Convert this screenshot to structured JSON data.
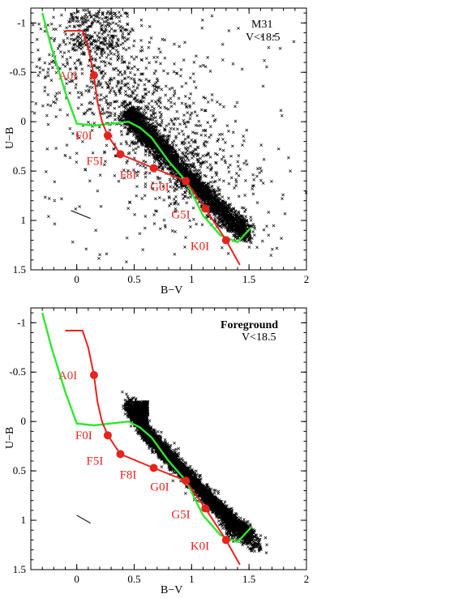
{
  "colors": {
    "red": "#e8231c",
    "green": "#2ee82e",
    "black": "#000000"
  },
  "chart_data": [
    {
      "type": "scatter",
      "title": "M31",
      "subtitle": "V<18.5",
      "title_bold": false,
      "xlabel": "B−V",
      "ylabel": "U−B",
      "xlim": [
        -0.4,
        2.0
      ],
      "ylim": [
        1.5,
        -1.15
      ],
      "y_inverted": true,
      "xticks": [
        0,
        0.5,
        1,
        1.5,
        2
      ],
      "xtick_labels": [
        "0",
        "0.5",
        "1",
        "1.5",
        "2"
      ],
      "yticks": [
        -1,
        -0.5,
        0,
        0.5,
        1,
        1.5
      ],
      "ytick_labels": [
        "-1",
        "-0.5",
        "0",
        "0.5",
        "1",
        "1.5"
      ],
      "scatter_description": "dense sequence of black crosses from (0.45, -0.05) to (1.5, 1.2) plus diffuse field crosses",
      "reddening_vector": [
        [
          -0.05,
          0.9
        ],
        [
          0.12,
          0.98
        ]
      ],
      "supergiant_sequence": {
        "x": [
          -0.1,
          0.05,
          0.1,
          0.15,
          0.18,
          0.22,
          0.27,
          0.38,
          0.67,
          0.95,
          1.12,
          1.3,
          1.42
        ],
        "y": [
          -0.92,
          -0.92,
          -0.75,
          -0.47,
          -0.2,
          0.0,
          0.14,
          0.33,
          0.47,
          0.6,
          0.88,
          1.2,
          1.45
        ]
      },
      "supergiant_points": [
        {
          "label": "A0I",
          "x": 0.15,
          "y": -0.47
        },
        {
          "label": "F0I",
          "x": 0.27,
          "y": 0.14
        },
        {
          "label": "F5I",
          "x": 0.38,
          "y": 0.33
        },
        {
          "label": "F8I",
          "x": 0.67,
          "y": 0.47
        },
        {
          "label": "G0I",
          "x": 0.95,
          "y": 0.6
        },
        {
          "label": "G5I",
          "x": 1.12,
          "y": 0.88
        },
        {
          "label": "K0I",
          "x": 1.3,
          "y": 1.2
        }
      ],
      "dwarf_sequence": {
        "x": [
          -0.3,
          -0.22,
          -0.1,
          0.0,
          0.15,
          0.3,
          0.45,
          0.55,
          0.65,
          0.8,
          0.95,
          1.1,
          1.25,
          1.4,
          1.52
        ],
        "y": [
          -1.1,
          -0.75,
          -0.3,
          0.02,
          0.04,
          0.02,
          0.0,
          0.06,
          0.16,
          0.4,
          0.6,
          0.95,
          1.15,
          1.22,
          1.07
        ]
      }
    },
    {
      "type": "scatter",
      "title": "Foreground",
      "subtitle": "V<18.5",
      "title_bold": true,
      "xlabel": "B−V",
      "ylabel": "U−B",
      "xlim": [
        -0.4,
        2.0
      ],
      "ylim": [
        1.5,
        -1.15
      ],
      "y_inverted": true,
      "xticks": [
        0,
        0.5,
        1,
        1.5,
        2
      ],
      "xtick_labels": [
        "0",
        "0.5",
        "1",
        "1.5",
        "2"
      ],
      "yticks": [
        -1,
        -0.5,
        0,
        0.5,
        1,
        1.5
      ],
      "ytick_labels": [
        "-1",
        "-0.5",
        "0",
        "0.5",
        "1",
        "1.5"
      ],
      "scatter_description": "dense narrow band of black crosses from (0.45, -0.2) to (1.55, 1.3)",
      "reddening_vector": [
        [
          0.0,
          0.95
        ],
        [
          0.12,
          1.03
        ]
      ],
      "supergiant_sequence": {
        "x": [
          -0.1,
          0.05,
          0.1,
          0.15,
          0.18,
          0.22,
          0.27,
          0.38,
          0.67,
          0.95,
          1.12,
          1.3,
          1.42
        ],
        "y": [
          -0.92,
          -0.92,
          -0.75,
          -0.47,
          -0.2,
          0.0,
          0.14,
          0.33,
          0.47,
          0.6,
          0.88,
          1.2,
          1.45
        ]
      },
      "supergiant_points": [
        {
          "label": "A0I",
          "x": 0.15,
          "y": -0.47
        },
        {
          "label": "F0I",
          "x": 0.27,
          "y": 0.14
        },
        {
          "label": "F5I",
          "x": 0.38,
          "y": 0.33
        },
        {
          "label": "F8I",
          "x": 0.67,
          "y": 0.47
        },
        {
          "label": "G0I",
          "x": 0.95,
          "y": 0.6
        },
        {
          "label": "G5I",
          "x": 1.12,
          "y": 0.88
        },
        {
          "label": "K0I",
          "x": 1.3,
          "y": 1.2
        }
      ],
      "dwarf_sequence": {
        "x": [
          -0.3,
          -0.22,
          -0.1,
          0.0,
          0.15,
          0.3,
          0.45,
          0.55,
          0.65,
          0.8,
          0.95,
          1.1,
          1.25,
          1.4,
          1.52
        ],
        "y": [
          -1.1,
          -0.75,
          -0.3,
          0.02,
          0.04,
          0.02,
          0.0,
          0.06,
          0.16,
          0.4,
          0.6,
          0.95,
          1.15,
          1.22,
          1.07
        ]
      }
    }
  ]
}
